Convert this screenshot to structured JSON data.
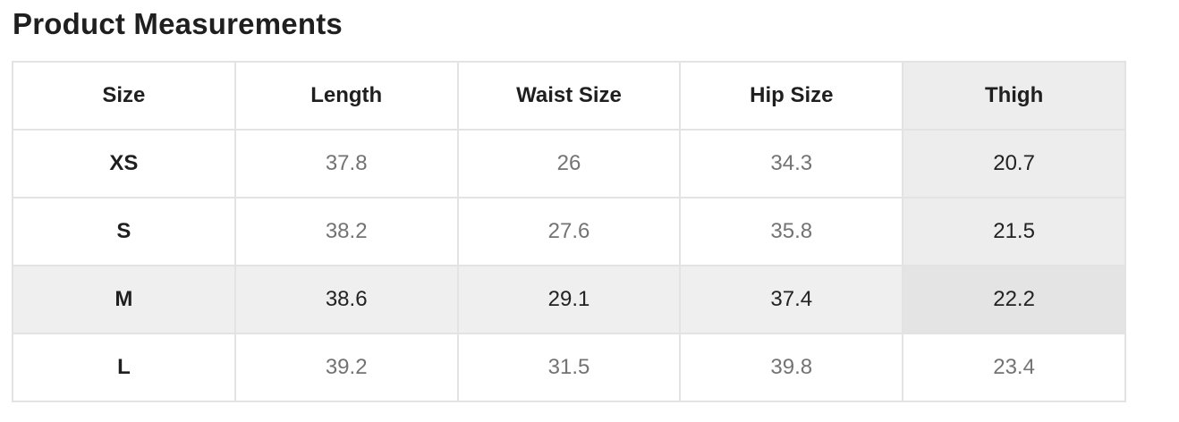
{
  "page": {
    "title": "Product Measurements"
  },
  "table": {
    "columns": [
      "Size",
      "Length",
      "Waist Size",
      "Hip Size",
      "Thigh"
    ],
    "rows": [
      {
        "size": "XS",
        "values": [
          "37.8",
          "26",
          "34.3",
          "20.7"
        ]
      },
      {
        "size": "S",
        "values": [
          "38.2",
          "27.6",
          "35.8",
          "21.5"
        ]
      },
      {
        "size": "M",
        "values": [
          "38.6",
          "29.1",
          "37.4",
          "22.2"
        ]
      },
      {
        "size": "L",
        "values": [
          "39.2",
          "31.5",
          "39.8",
          "23.4"
        ]
      }
    ],
    "highlight": {
      "column_label": "Thigh",
      "column_index": 4,
      "row_label": "M",
      "row_index": 2
    }
  },
  "colors": {
    "column_highlight_bg": "#ededed",
    "row_highlight_bg": "#efefef",
    "intersection_bg": "#e4e4e4",
    "border": "#e3e3e3",
    "heading_text": "#1f1f1f",
    "value_text": "#737373",
    "highlighted_value_text": "#222222"
  }
}
